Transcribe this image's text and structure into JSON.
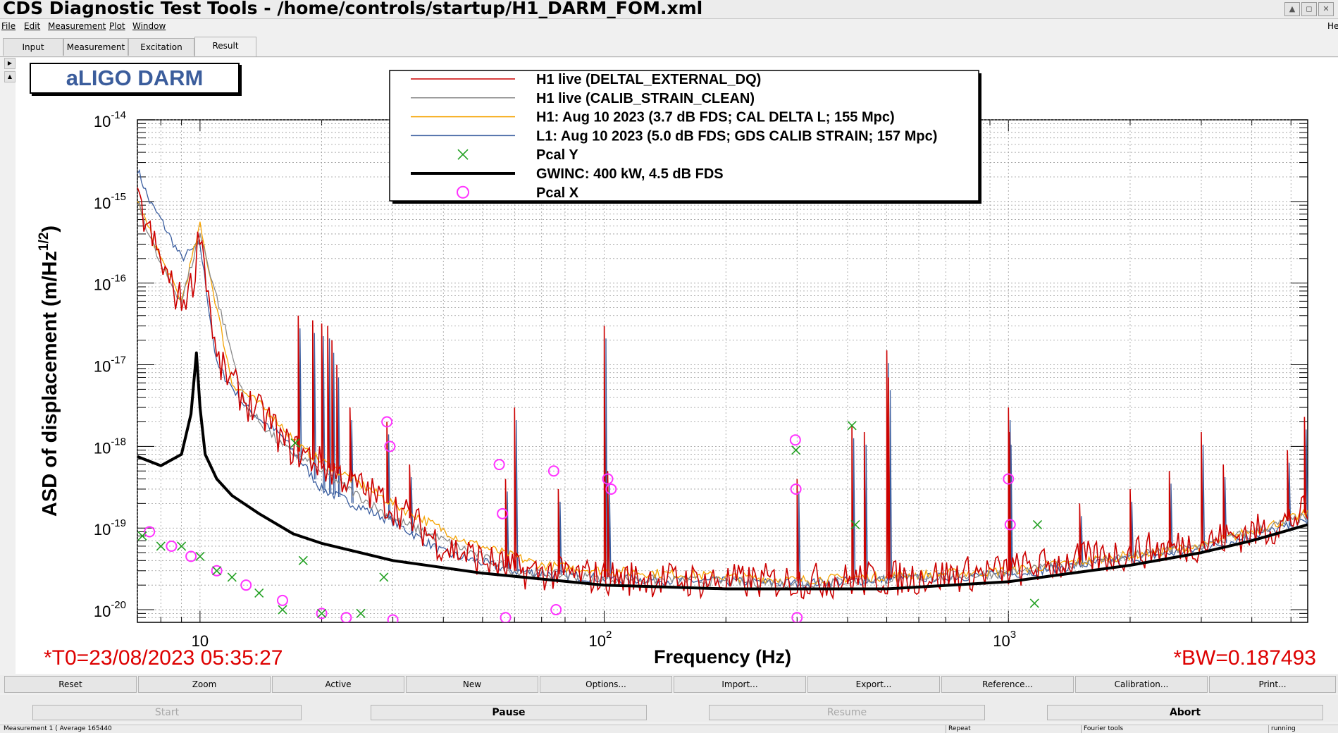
{
  "window": {
    "title": "CDS Diagnostic Test Tools - /home/controls/startup/H1_DARM_FOM.xml",
    "right_clip": "He"
  },
  "menu": [
    "File",
    "Edit",
    "Measurement",
    "Plot",
    "Window"
  ],
  "tabs": [
    "Input",
    "Measurement",
    "Excitation",
    "Result"
  ],
  "active_tab": "Result",
  "plot_label": "aLIGO DARM",
  "plot_controls": [
    "Reset",
    "Zoom",
    "Active",
    "New",
    "Options...",
    "Import...",
    "Export...",
    "Reference...",
    "Calibration...",
    "Print..."
  ],
  "run_controls": [
    {
      "label": "Start",
      "enabled": false
    },
    {
      "label": "Pause",
      "enabled": true
    },
    {
      "label": "Resume",
      "enabled": false
    },
    {
      "label": "Abort",
      "enabled": true
    }
  ],
  "status": {
    "measurement": "Measurement 1 ( Average 165440",
    "repeat": "Repeat",
    "tools": "Fourier tools",
    "state": "running"
  },
  "chart_data": {
    "type": "line",
    "xlabel": "Frequency (Hz)",
    "ylabel": "ASD of displacement (m/Hz^1/2)",
    "xscale": "log",
    "yscale": "log",
    "xlim": [
      7,
      5500
    ],
    "ylim": [
      7e-21,
      1e-14
    ],
    "grid": true,
    "legend_placement": "top-center",
    "x_ticks": [
      {
        "value": 10,
        "label": "10"
      },
      {
        "value": 100,
        "label": "10^2"
      },
      {
        "value": 1000,
        "label": "10^3"
      }
    ],
    "y_ticks": [
      {
        "value": 1e-14,
        "exp": "-14"
      },
      {
        "value": 1e-15,
        "exp": "-15"
      },
      {
        "value": 1e-16,
        "exp": "-16"
      },
      {
        "value": 1e-17,
        "exp": "-17"
      },
      {
        "value": 1e-18,
        "exp": "-18"
      },
      {
        "value": 1e-19,
        "exp": "-19"
      },
      {
        "value": 1e-20,
        "exp": "-20"
      }
    ],
    "annotation_left": "*T0=23/08/2023 05:35:27",
    "annotation_right": "*BW=0.187493",
    "legend": [
      {
        "name": "H1 live (DELTAL_EXTERNAL_DQ)",
        "color": "#cc0000",
        "style": "line"
      },
      {
        "name": "H1 live (CALIB_STRAIN_CLEAN)",
        "color": "#8a8a8a",
        "style": "line"
      },
      {
        "name": "H1: Aug 10 2023 (3.7 dB FDS; CAL DELTA L; 155 Mpc)",
        "color": "#f5a300",
        "style": "line"
      },
      {
        "name": "L1: Aug 10 2023 (5.0 dB FDS; GDS CALIB STRAIN; 157 Mpc)",
        "color": "#3c5fa0",
        "style": "line"
      },
      {
        "name": "Pcal Y",
        "color": "#22a022",
        "style": "cross"
      },
      {
        "name": "GWINC: 400 kW, 4.5 dB FDS",
        "color": "#000000",
        "style": "thick"
      },
      {
        "name": "Pcal X",
        "color": "#ff33ff",
        "style": "circle"
      }
    ],
    "series": [
      {
        "name": "H1 live (DELTAL_EXTERNAL_DQ)",
        "color": "#cc0000",
        "x": [
          7,
          8,
          8.6,
          9,
          9.6,
          10,
          11,
          13,
          15,
          16,
          18,
          20,
          23,
          27,
          32,
          40,
          60,
          100,
          200,
          400,
          600,
          1000,
          2000,
          3000,
          4500,
          5500
        ],
        "y": [
          1e-15,
          1.8e-16,
          8e-17,
          6e-17,
          1e-16,
          5e-16,
          1.1e-17,
          3.5e-18,
          2e-18,
          1.1e-18,
          8e-19,
          6e-19,
          4e-19,
          2.5e-19,
          1.5e-19,
          6e-20,
          3e-20,
          2.5e-20,
          2.2e-20,
          2.3e-20,
          2.5e-20,
          3e-20,
          5e-20,
          6.5e-20,
          1e-19,
          1.6e-19
        ]
      },
      {
        "name": "H1 live (CALIB_STRAIN_CLEAN)",
        "color": "#8a8a8a",
        "x": [
          7,
          8,
          9,
          10,
          13,
          16,
          20,
          30,
          60,
          100,
          300,
          1000,
          3000,
          5500
        ],
        "y": [
          1e-15,
          1.6e-16,
          6e-17,
          4e-16,
          3e-18,
          1e-18,
          5e-19,
          1.3e-19,
          3e-20,
          2.4e-20,
          2.1e-20,
          2.8e-20,
          6e-20,
          1.4e-19
        ]
      },
      {
        "name": "H1: Aug 10 2023 (3.7 dB FDS; CAL DELTA L; 155 Mpc)",
        "color": "#f5a300",
        "x": [
          7,
          8,
          9,
          10,
          12,
          15,
          18,
          22,
          30,
          45,
          70,
          100,
          300,
          1000,
          3000,
          5500
        ],
        "y": [
          1e-15,
          2e-16,
          6e-17,
          5e-16,
          6e-18,
          2.5e-18,
          9e-19,
          5e-19,
          2e-19,
          7e-20,
          3.5e-20,
          3e-20,
          2.3e-20,
          3e-20,
          6e-20,
          1.5e-19
        ]
      },
      {
        "name": "L1: Aug 10 2023 (5.0 dB FDS; GDS CALIB STRAIN; 157 Mpc)",
        "color": "#3c5fa0",
        "x": [
          7,
          7.5,
          8,
          9,
          10,
          11,
          13,
          16,
          20,
          25,
          30,
          40,
          60,
          100,
          300,
          1000,
          3000,
          5500
        ],
        "y": [
          2.5e-15,
          1e-15,
          6e-16,
          2e-16,
          3e-16,
          1e-17,
          3e-18,
          1.3e-18,
          3e-19,
          1.8e-19,
          1.2e-19,
          5e-20,
          3e-20,
          2.4e-20,
          2.1e-20,
          2.7e-20,
          5.5e-20,
          1.2e-19
        ]
      },
      {
        "name": "GWINC: 400 kW, 4.5 dB FDS",
        "color": "#000000",
        "x": [
          7,
          8,
          9,
          9.5,
          9.8,
          10,
          10.3,
          11,
          12,
          14,
          17,
          20,
          30,
          50,
          100,
          200,
          500,
          1000,
          2000,
          3000,
          4000,
          5500
        ],
        "y": [
          7.5e-19,
          5.8e-19,
          8e-19,
          2.5e-18,
          1.4e-17,
          3e-18,
          8e-19,
          4e-19,
          2.5e-19,
          1.5e-19,
          8.5e-20,
          6.5e-20,
          4e-20,
          2.8e-20,
          2e-20,
          1.8e-20,
          1.8e-20,
          2.2e-20,
          3.5e-20,
          5e-20,
          7e-20,
          1.1e-19
        ]
      }
    ],
    "peaks": [
      {
        "f": 17.5,
        "a": 4e-17
      },
      {
        "f": 19,
        "a": 3.5e-17
      },
      {
        "f": 20,
        "a": 3.2e-17
      },
      {
        "f": 20.7,
        "a": 3e-17
      },
      {
        "f": 21.2,
        "a": 2e-17
      },
      {
        "f": 21.8,
        "a": 1e-17
      },
      {
        "f": 23.5,
        "a": 3e-18
      },
      {
        "f": 29,
        "a": 2e-18
      },
      {
        "f": 33,
        "a": 6e-19
      },
      {
        "f": 57,
        "a": 4e-19
      },
      {
        "f": 60,
        "a": 3e-18
      },
      {
        "f": 77,
        "a": 3e-19
      },
      {
        "f": 100,
        "a": 3e-17
      },
      {
        "f": 102,
        "a": 5e-19
      },
      {
        "f": 300,
        "a": 4e-19
      },
      {
        "f": 410,
        "a": 1.8e-18
      },
      {
        "f": 440,
        "a": 1.5e-18
      },
      {
        "f": 500,
        "a": 1.5e-17
      },
      {
        "f": 505,
        "a": 7e-18
      },
      {
        "f": 1000,
        "a": 3e-18
      },
      {
        "f": 1005,
        "a": 1.5e-18
      },
      {
        "f": 1500,
        "a": 2e-19
      },
      {
        "f": 2000,
        "a": 3e-19
      },
      {
        "f": 2500,
        "a": 5e-19
      },
      {
        "f": 3000,
        "a": 1.5e-18
      },
      {
        "f": 3400,
        "a": 6e-19
      },
      {
        "f": 4900,
        "a": 9e-19
      },
      {
        "f": 5400,
        "a": 2.3e-18
      }
    ],
    "pcal_y": {
      "color": "#22a022",
      "x": [
        7.2,
        8,
        9,
        10,
        11,
        12,
        14,
        16,
        17.2,
        18,
        20,
        25,
        28.5,
        298,
        410,
        418,
        1160,
        1180
      ],
      "y": [
        8e-20,
        6e-20,
        6e-20,
        4.5e-20,
        3e-20,
        2.5e-20,
        1.6e-20,
        1e-20,
        1.1e-18,
        4e-20,
        9e-21,
        9e-21,
        2.5e-20,
        9e-19,
        1.8e-18,
        1.1e-19,
        1.2e-20,
        1.1e-19
      ]
    },
    "pcal_x": {
      "color": "#ff33ff",
      "x": [
        7.5,
        8.5,
        9.5,
        11,
        13,
        16,
        20,
        23,
        29,
        29.5,
        30,
        55,
        56,
        57,
        75,
        76,
        102,
        104,
        297,
        298,
        300,
        1000,
        1010
      ],
      "y": [
        9e-20,
        6e-20,
        4.5e-20,
        3e-20,
        2e-20,
        1.3e-20,
        9e-21,
        8e-21,
        2e-18,
        1e-18,
        7.5e-21,
        6e-19,
        1.5e-19,
        8e-21,
        5e-19,
        1e-20,
        4e-19,
        3e-19,
        1.2e-18,
        3e-19,
        8e-21,
        4e-19,
        1.1e-19
      ]
    }
  }
}
